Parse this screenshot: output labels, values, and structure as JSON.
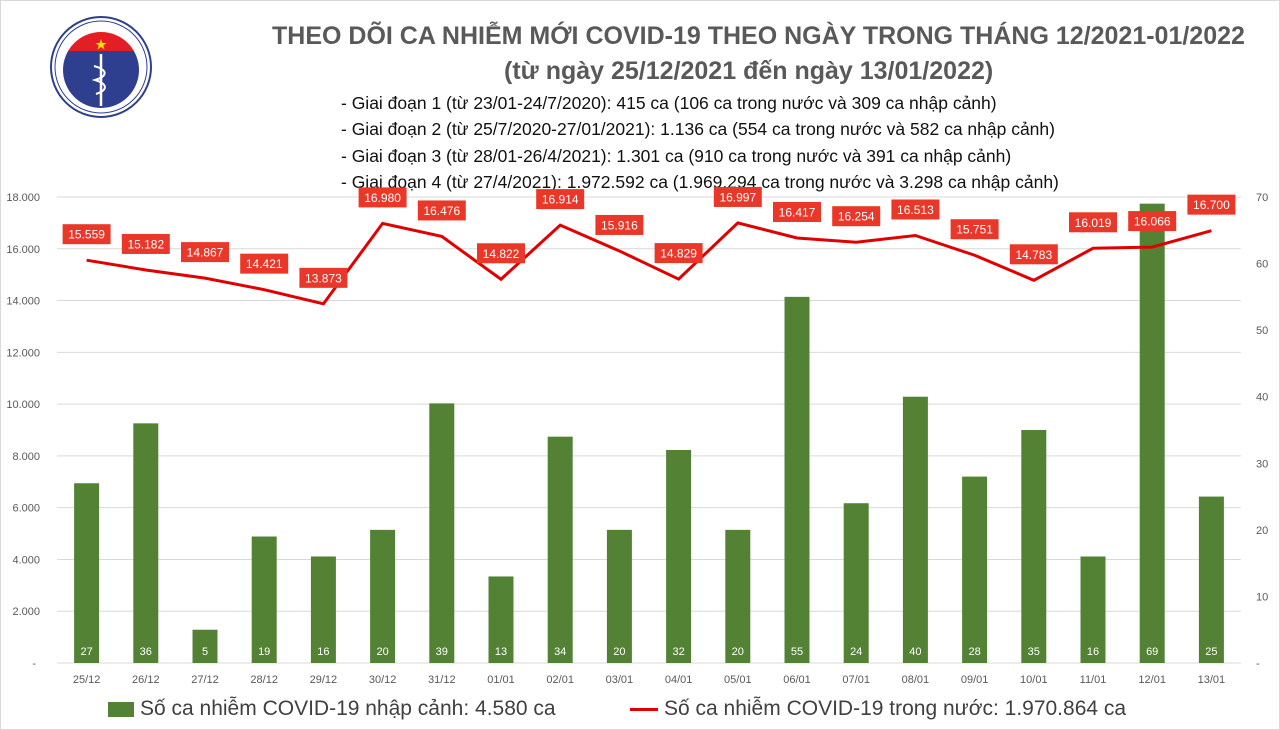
{
  "logo": {
    "text_top": "BỘ Y TẾ",
    "text_bottom": "MINISTRY OF HEALTH"
  },
  "header": {
    "title": "THEO DÕI CA NHIỄM MỚI COVID-19 THEO NGÀY TRONG THÁNG 12/2021-01/2022",
    "subtitle": "(từ ngày 25/12/2021 đến ngày 13/01/2022)",
    "phases": [
      "- Giai đoạn 1 (từ 23/01-24/7/2020): 415 ca (106 ca trong nước và 309 ca nhập cảnh)",
      "- Giai đoạn 2 (từ 25/7/2020-27/01/2021): 1.136 ca (554 ca trong nước và 582 ca nhập cảnh)",
      "- Giai đoạn 3 (từ 28/01-26/4/2021): 1.301 ca (910 ca trong nước và 391 ca nhập cảnh)",
      "- Giai đoạn 4 (từ 27/4/2021): 1.972.592 ca (1.969.294 ca trong nước và 3.298 ca nhập cảnh)"
    ]
  },
  "chart_data": {
    "type": "bar+line",
    "categories": [
      "25/12",
      "26/12",
      "27/12",
      "28/12",
      "29/12",
      "30/12",
      "31/12",
      "01/01",
      "02/01",
      "03/01",
      "04/01",
      "05/01",
      "06/01",
      "07/01",
      "08/01",
      "09/01",
      "10/01",
      "11/01",
      "12/01",
      "13/01"
    ],
    "series": [
      {
        "name": "Số ca nhiễm COVID-19 nhập cảnh: 4.580 ca",
        "type": "bar",
        "axis": "right",
        "color": "#548235",
        "values": [
          27,
          36,
          5,
          19,
          16,
          20,
          39,
          13,
          34,
          20,
          32,
          20,
          55,
          24,
          40,
          28,
          35,
          16,
          69,
          25
        ]
      },
      {
        "name": "Số ca nhiễm COVID-19 trong nước: 1.970.864 ca",
        "type": "line",
        "axis": "left",
        "color": "#e00000",
        "values": [
          15559,
          15182,
          14867,
          14421,
          13873,
          16980,
          16476,
          14822,
          16914,
          15916,
          14829,
          16997,
          16417,
          16254,
          16513,
          15751,
          14783,
          16019,
          16066,
          16700
        ]
      }
    ],
    "left_axis": {
      "ylim": [
        0,
        18000
      ],
      "ticks": [
        "-",
        "2.000",
        "4.000",
        "6.000",
        "8.000",
        "10.000",
        "12.000",
        "14.000",
        "16.000",
        "18.000"
      ]
    },
    "right_axis": {
      "ylim": [
        0,
        70
      ],
      "ticks": [
        "-",
        "10",
        "20",
        "30",
        "40",
        "50",
        "60",
        "70"
      ]
    },
    "bar_labels": [
      "27",
      "36",
      "5",
      "19",
      "16",
      "20",
      "39",
      "13",
      "34",
      "20",
      "32",
      "20",
      "55",
      "24",
      "40",
      "28",
      "35",
      "16",
      "69",
      "25"
    ],
    "line_labels": [
      "15.559",
      "15.182",
      "14.867",
      "14.421",
      "13.873",
      "16.980",
      "16.476",
      "14.822",
      "16.914",
      "15.916",
      "14.829",
      "16.997",
      "16.417",
      "16.254",
      "16.513",
      "15.751",
      "14.783",
      "16.019",
      "16.066",
      "16.700"
    ],
    "grid": true,
    "legend_position": "bottom",
    "legend": [
      "Số ca nhiễm COVID-19 nhập cảnh: 4.580 ca",
      "Số ca nhiễm COVID-19 trong nước: 1.970.864 ca"
    ]
  }
}
